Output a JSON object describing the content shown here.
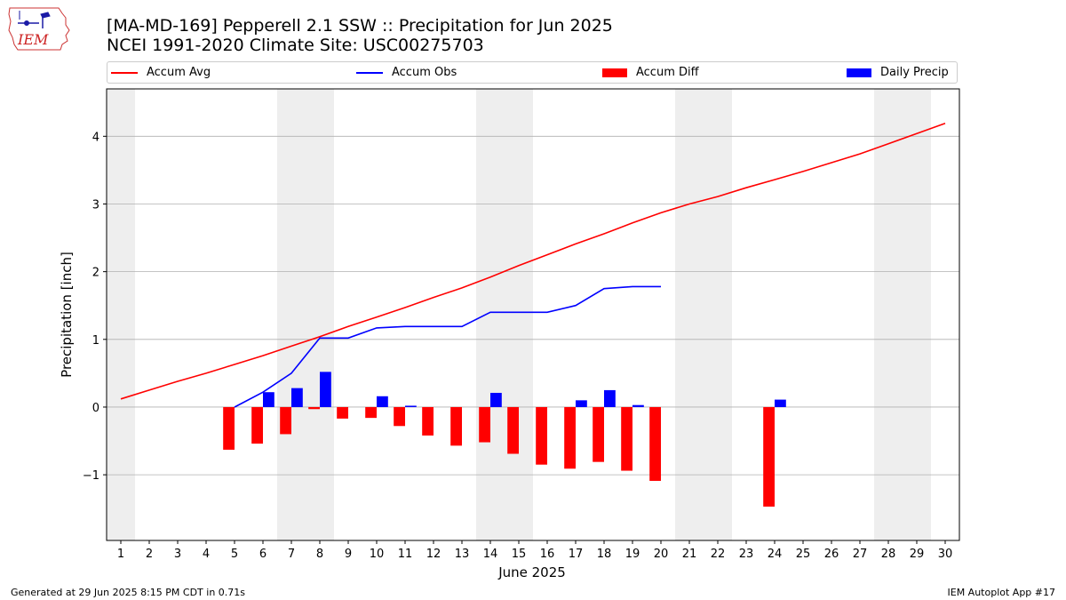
{
  "title_line1": "[MA-MD-169] Pepperell 2.1 SSW :: Precipitation for Jun 2025",
  "title_line2": "NCEI 1991-2020 Climate Site: USC00275703",
  "logo_text": "IEM",
  "footer_left": "Generated at 29 Jun 2025 8:15 PM CDT in 0.71s",
  "footer_right": "IEM Autoplot App #17",
  "colors": {
    "accum_avg": "#ff0000",
    "accum_obs": "#0000ff",
    "accum_diff": "#ff0000",
    "daily_precip": "#0000ff",
    "weekend_band": "#eeeeee",
    "grid": "#b0b0b0"
  },
  "chart_data": {
    "type": "bar",
    "xlabel": "June 2025",
    "ylabel": "Precipitation [inch]",
    "xlim": [
      0.5,
      30.5
    ],
    "ylim": [
      -1.97,
      4.7
    ],
    "y_ticks": [
      -1,
      0,
      1,
      2,
      3,
      4
    ],
    "y_tick_labels": [
      "−1",
      "0",
      "1",
      "2",
      "3",
      "4"
    ],
    "x": [
      1,
      2,
      3,
      4,
      5,
      6,
      7,
      8,
      9,
      10,
      11,
      12,
      13,
      14,
      15,
      16,
      17,
      18,
      19,
      20,
      21,
      22,
      23,
      24,
      25,
      26,
      27,
      28,
      29,
      30
    ],
    "x_tick_labels": [
      "1",
      "2",
      "3",
      "4",
      "5",
      "6",
      "7",
      "8",
      "9",
      "10",
      "11",
      "12",
      "13",
      "14",
      "15",
      "16",
      "17",
      "18",
      "19",
      "20",
      "21",
      "22",
      "23",
      "24",
      "25",
      "26",
      "27",
      "28",
      "29",
      "30"
    ],
    "weekend_spans": [
      [
        0.5,
        1.5
      ],
      [
        6.5,
        8.5
      ],
      [
        13.5,
        15.5
      ],
      [
        20.5,
        22.5
      ],
      [
        27.5,
        29.5
      ]
    ],
    "grid": "y",
    "legend_position": "top",
    "series": [
      {
        "name": "Accum Avg",
        "kind": "line",
        "x": [
          1,
          2,
          3,
          4,
          5,
          6,
          7,
          8,
          9,
          10,
          11,
          12,
          13,
          14,
          15,
          16,
          17,
          18,
          19,
          20,
          21,
          22,
          23,
          24,
          25,
          26,
          27,
          28,
          29,
          30
        ],
        "values": [
          0.12,
          0.25,
          0.38,
          0.5,
          0.63,
          0.76,
          0.9,
          1.04,
          1.19,
          1.33,
          1.47,
          1.62,
          1.76,
          1.92,
          2.09,
          2.25,
          2.41,
          2.56,
          2.72,
          2.87,
          3.0,
          3.11,
          3.24,
          3.36,
          3.48,
          3.61,
          3.74,
          3.89,
          4.04,
          4.19
        ]
      },
      {
        "name": "Accum Obs",
        "kind": "line",
        "x": [
          5,
          6,
          7,
          8,
          9,
          10,
          11,
          12,
          13,
          14,
          15,
          16,
          17,
          18,
          19,
          20
        ],
        "values": [
          0.0,
          0.22,
          0.5,
          1.02,
          1.02,
          1.17,
          1.19,
          1.19,
          1.19,
          1.4,
          1.4,
          1.4,
          1.5,
          1.75,
          1.78,
          1.78
        ]
      },
      {
        "name": "Accum Diff",
        "kind": "bar",
        "x": [
          5,
          6,
          7,
          8,
          9,
          10,
          11,
          12,
          13,
          14,
          15,
          16,
          17,
          18,
          19,
          20,
          24
        ],
        "values": [
          -0.63,
          -0.54,
          -0.4,
          -0.03,
          -0.17,
          -0.16,
          -0.28,
          -0.42,
          -0.57,
          -0.52,
          -0.69,
          -0.85,
          -0.91,
          -0.81,
          -0.94,
          -1.09,
          -1.47
        ]
      },
      {
        "name": "Daily Precip",
        "kind": "bar",
        "x": [
          6,
          7,
          8,
          10,
          11,
          14,
          17,
          18,
          19,
          24
        ],
        "values": [
          0.22,
          0.28,
          0.52,
          0.16,
          0.02,
          0.21,
          0.1,
          0.25,
          0.03,
          0.11
        ]
      }
    ]
  }
}
